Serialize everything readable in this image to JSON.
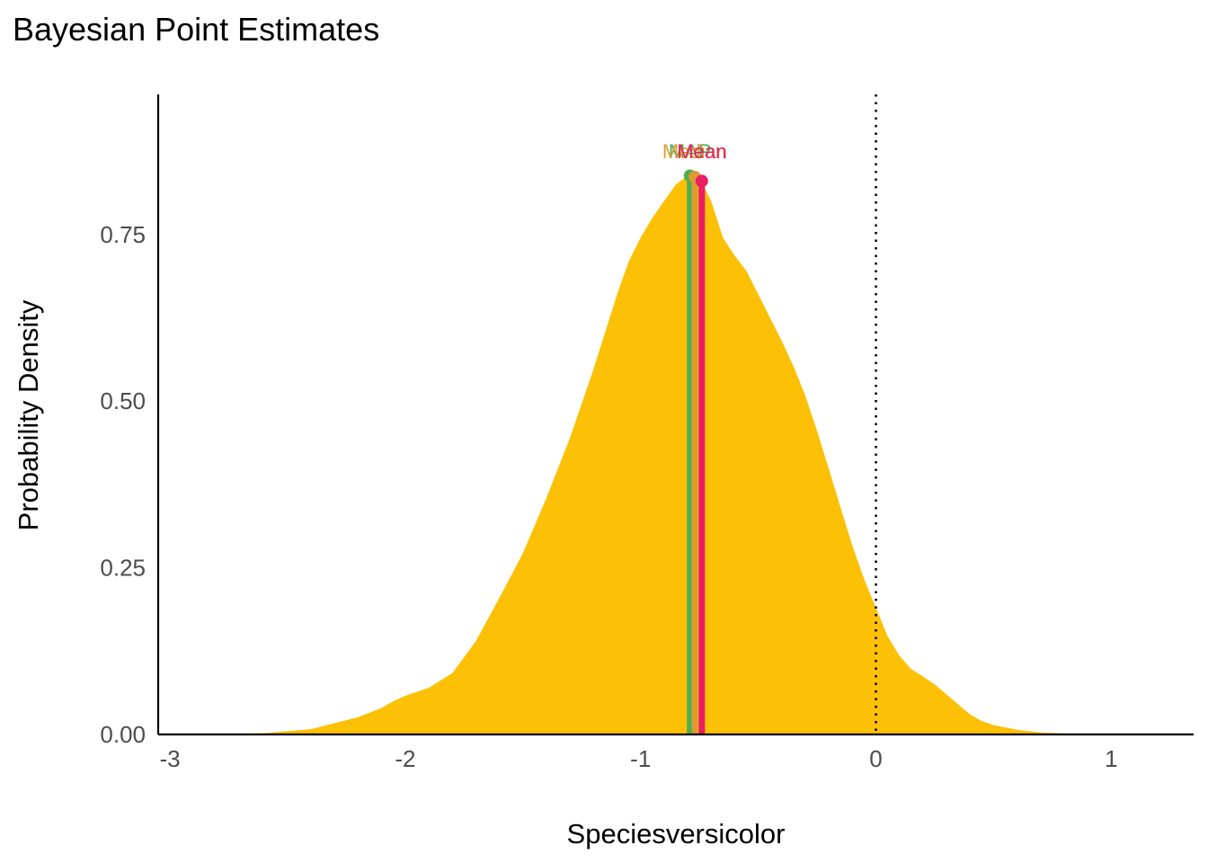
{
  "chart_data": {
    "type": "area",
    "title": "Bayesian Point Estimates",
    "xlabel": "Speciesversicolor",
    "ylabel": "Probability Density",
    "xlim": [
      -3.05,
      1.35
    ],
    "ylim": [
      0,
      0.96
    ],
    "x_ticks": [
      "-3",
      "-2",
      "-1",
      "0",
      "1"
    ],
    "y_ticks": [
      "0.00",
      "0.25",
      "0.50",
      "0.75"
    ],
    "grid": false,
    "reference_line": {
      "x": 0,
      "style": "dotted",
      "color": "#000000"
    },
    "density": {
      "fill": "#fcc006",
      "x": [
        -3.0,
        -2.8,
        -2.6,
        -2.4,
        -2.2,
        -2.1,
        -2.05,
        -2.0,
        -1.95,
        -1.9,
        -1.8,
        -1.7,
        -1.6,
        -1.5,
        -1.4,
        -1.3,
        -1.2,
        -1.1,
        -1.05,
        -1.0,
        -0.95,
        -0.9,
        -0.85,
        -0.8,
        -0.75,
        -0.7,
        -0.65,
        -0.6,
        -0.55,
        -0.5,
        -0.45,
        -0.4,
        -0.35,
        -0.3,
        -0.25,
        -0.2,
        -0.15,
        -0.1,
        -0.05,
        0.0,
        0.05,
        0.1,
        0.15,
        0.2,
        0.25,
        0.3,
        0.35,
        0.4,
        0.45,
        0.5,
        0.6,
        0.7,
        0.8,
        0.9,
        1.0
      ],
      "y": [
        0.0,
        0.0005,
        0.002,
        0.008,
        0.026,
        0.04,
        0.05,
        0.058,
        0.064,
        0.07,
        0.092,
        0.14,
        0.205,
        0.272,
        0.355,
        0.445,
        0.548,
        0.66,
        0.71,
        0.745,
        0.775,
        0.8,
        0.825,
        0.838,
        0.835,
        0.8,
        0.745,
        0.718,
        0.695,
        0.66,
        0.625,
        0.59,
        0.552,
        0.508,
        0.455,
        0.398,
        0.34,
        0.283,
        0.233,
        0.19,
        0.147,
        0.118,
        0.098,
        0.087,
        0.075,
        0.06,
        0.045,
        0.03,
        0.02,
        0.014,
        0.007,
        0.003,
        0.0015,
        0.0005,
        0.0
      ]
    },
    "series": [
      {
        "name": "MAP",
        "x": -0.79,
        "y": 0.838,
        "color": "#4caf50"
      },
      {
        "name": "Median",
        "x": -0.77,
        "y": 0.836,
        "color": "#dd9a33"
      },
      {
        "name": "Mean",
        "x": -0.74,
        "y": 0.83,
        "color": "#e91e63"
      }
    ]
  }
}
